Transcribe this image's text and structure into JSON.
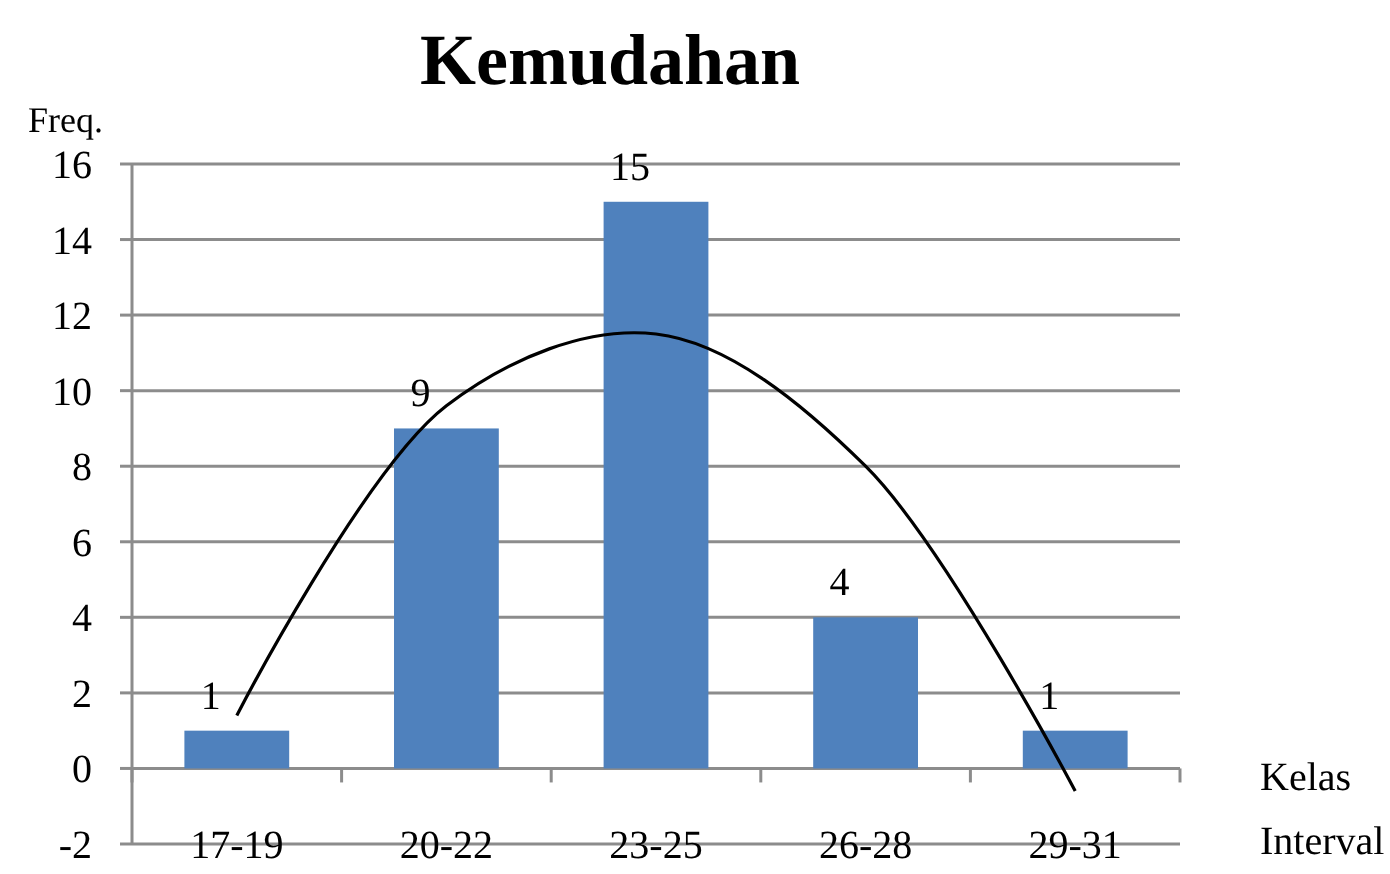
{
  "chart_data": {
    "type": "bar",
    "title": "Kemudahan",
    "ylabel": "Freq.",
    "xlabel": "Kelas Interval",
    "categories": [
      "17-19",
      "20-22",
      "23-25",
      "26-28",
      "29-31"
    ],
    "series": [
      {
        "color": "#4f81bd",
        "values": [
          1,
          9,
          15,
          4,
          1
        ],
        "value_labels": [
          "1",
          "9",
          "15",
          "4",
          "1"
        ]
      },
      {
        "type": "line",
        "color": "#000000",
        "values": [
          1.4,
          9.6,
          11.5,
          8.0,
          -0.6
        ]
      }
    ],
    "ylim": [
      -2,
      16
    ],
    "yticks": [
      -2,
      0,
      2,
      4,
      6,
      8,
      10,
      12,
      14,
      16
    ],
    "grid": "y",
    "marker": "none"
  }
}
